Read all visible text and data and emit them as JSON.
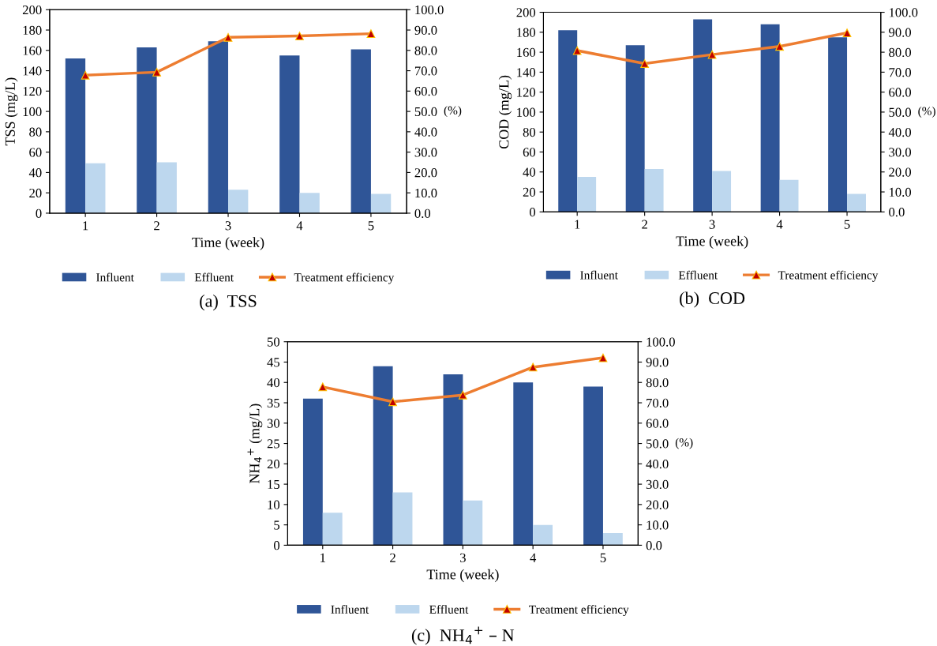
{
  "chart_data": [
    {
      "type": "bar",
      "categories": [
        "1",
        "2",
        "3",
        "4",
        "5"
      ],
      "xlabel": "Time (week)",
      "ylabel": "TSS (mg/L)",
      "y2label": "(%)",
      "ylim": [
        0,
        200
      ],
      "yticks": [
        0,
        20,
        40,
        60,
        80,
        100,
        120,
        140,
        160,
        180,
        200
      ],
      "y2lim": [
        0,
        100
      ],
      "y2ticks": [
        {
          "value": 0,
          "label": "0.0"
        },
        {
          "value": 10,
          "label": "10.0"
        },
        {
          "value": 20,
          "label": "20.0"
        },
        {
          "value": 30,
          "label": "30.0"
        },
        {
          "value": 40,
          "label": "40.0"
        },
        {
          "value": 50,
          "label": "50.0"
        },
        {
          "value": 60,
          "label": "60.0"
        },
        {
          "value": 70,
          "label": "70.0"
        },
        {
          "value": 80,
          "label": "80.0"
        },
        {
          "value": 90,
          "label": "90.0"
        },
        {
          "value": 100,
          "label": "100.0"
        }
      ],
      "legend": "bottom",
      "grid": false,
      "marker": "triangle",
      "annotations": [
        "(a)  TSS"
      ],
      "series": [
        {
          "name": "Influent",
          "color": "#2f5597",
          "values": [
            152,
            163,
            169,
            155,
            161
          ]
        },
        {
          "name": "Effluent",
          "color": "#bdd7ee",
          "values": [
            49,
            50,
            23,
            20,
            19
          ]
        },
        {
          "name": "Treatment efficiency",
          "type": "line",
          "axis": "y2",
          "color": "#ed7d31",
          "values": [
            67.8,
            69.3,
            86.4,
            87.1,
            88.2
          ]
        }
      ]
    },
    {
      "type": "bar",
      "categories": [
        "1",
        "2",
        "3",
        "4",
        "5"
      ],
      "xlabel": "Time (week)",
      "ylabel": "COD (mg/L)",
      "y2label": "(%)",
      "ylim": [
        0,
        200
      ],
      "yticks": [
        0,
        20,
        40,
        60,
        80,
        100,
        120,
        140,
        160,
        180,
        200
      ],
      "y2lim": [
        0,
        100
      ],
      "y2ticks": [
        {
          "value": 0,
          "label": "0.0"
        },
        {
          "value": 10,
          "label": "10.0"
        },
        {
          "value": 20,
          "label": "20.0"
        },
        {
          "value": 30,
          "label": "30.0"
        },
        {
          "value": 40,
          "label": "40.0"
        },
        {
          "value": 50,
          "label": "50.0"
        },
        {
          "value": 60,
          "label": "60.0"
        },
        {
          "value": 70,
          "label": "70.0"
        },
        {
          "value": 80,
          "label": "80.0"
        },
        {
          "value": 90,
          "label": "90.0"
        },
        {
          "value": 100,
          "label": "100.0"
        }
      ],
      "legend": "bottom",
      "grid": false,
      "marker": "triangle",
      "annotations": [
        "(b)  COD"
      ],
      "series": [
        {
          "name": "Influent",
          "color": "#2f5597",
          "values": [
            182,
            167,
            193,
            188,
            175
          ]
        },
        {
          "name": "Effluent",
          "color": "#bdd7ee",
          "values": [
            35,
            43,
            41,
            32,
            18
          ]
        },
        {
          "name": "Treatment efficiency",
          "type": "line",
          "axis": "y2",
          "color": "#ed7d31",
          "values": [
            80.8,
            74.3,
            78.8,
            82.9,
            89.7
          ]
        }
      ]
    },
    {
      "type": "bar",
      "categories": [
        "1",
        "2",
        "3",
        "4",
        "5"
      ],
      "xlabel": "Time (week)",
      "ylabel": "NH$_{4}$$^{+}$ (mg/L)",
      "y2label": "(%)",
      "ylim": [
        0,
        50
      ],
      "yticks": [
        0,
        5,
        10,
        15,
        20,
        25,
        30,
        35,
        40,
        45,
        50
      ],
      "y2lim": [
        0,
        100
      ],
      "y2ticks": [
        {
          "value": 0,
          "label": "0.0"
        },
        {
          "value": 10,
          "label": "10.0"
        },
        {
          "value": 20,
          "label": "20.0"
        },
        {
          "value": 30,
          "label": "30.0"
        },
        {
          "value": 40,
          "label": "40.0"
        },
        {
          "value": 50,
          "label": "50.0"
        },
        {
          "value": 60,
          "label": "60.0"
        },
        {
          "value": 70,
          "label": "70.0"
        },
        {
          "value": 80,
          "label": "80.0"
        },
        {
          "value": 90,
          "label": "90.0"
        },
        {
          "value": 100,
          "label": "100.0"
        }
      ],
      "legend": "bottom",
      "grid": false,
      "marker": "triangle",
      "annotations": [
        "(c)  NH$_{4}$$^{+}$ – N"
      ],
      "series": [
        {
          "name": "Influent",
          "color": "#2f5597",
          "values": [
            36,
            44,
            42,
            40,
            39
          ]
        },
        {
          "name": "Effluent",
          "color": "#bdd7ee",
          "values": [
            8,
            13,
            11,
            5,
            3
          ]
        },
        {
          "name": "Treatment efficiency",
          "type": "line",
          "axis": "y2",
          "color": "#ed7d31",
          "values": [
            77.8,
            70.5,
            73.8,
            87.5,
            92.1
          ]
        }
      ]
    }
  ]
}
